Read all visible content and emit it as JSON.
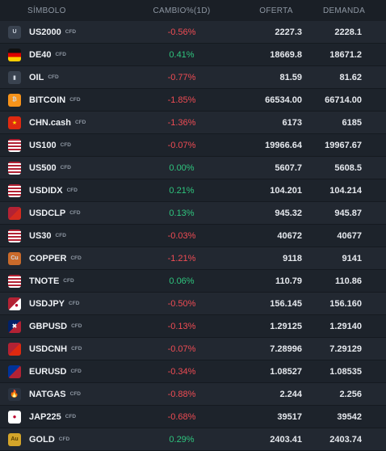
{
  "header": {
    "symbol": "SÍMBOLO",
    "change": "CAMBIO%(1D)",
    "bid": "OFERTA",
    "ask": "DEMANDA"
  },
  "colors": {
    "negative": "#ef4c54",
    "positive": "#2fc57e"
  },
  "rows": [
    {
      "symbol": "US2000",
      "tag": "CFD",
      "change": "-0.56%",
      "dir": "neg",
      "bid": "2227.3",
      "ask": "2228.1",
      "icon": "us2000-icon"
    },
    {
      "symbol": "DE40",
      "tag": "CFD",
      "change": "0.41%",
      "dir": "pos",
      "bid": "18669.8",
      "ask": "18671.2",
      "icon": "germany-flag-icon"
    },
    {
      "symbol": "OIL",
      "tag": "CFD",
      "change": "-0.77%",
      "dir": "neg",
      "bid": "81.59",
      "ask": "81.62",
      "icon": "oil-barrel-icon"
    },
    {
      "symbol": "BITCOIN",
      "tag": "CFD",
      "change": "-1.85%",
      "dir": "neg",
      "bid": "66534.00",
      "ask": "66714.00",
      "icon": "bitcoin-icon"
    },
    {
      "symbol": "CHN.cash",
      "tag": "CFD",
      "change": "-1.36%",
      "dir": "neg",
      "bid": "6173",
      "ask": "6185",
      "icon": "china-flag-icon"
    },
    {
      "symbol": "US100",
      "tag": "CFD",
      "change": "-0.07%",
      "dir": "neg",
      "bid": "19966.64",
      "ask": "19967.67",
      "icon": "us-flag-icon"
    },
    {
      "symbol": "US500",
      "tag": "CFD",
      "change": "0.00%",
      "dir": "pos",
      "bid": "5607.7",
      "ask": "5608.5",
      "icon": "us-flag-icon"
    },
    {
      "symbol": "USDIDX",
      "tag": "CFD",
      "change": "0.21%",
      "dir": "pos",
      "bid": "104.201",
      "ask": "104.214",
      "icon": "us-flag-icon"
    },
    {
      "symbol": "USDCLP",
      "tag": "CFD",
      "change": "0.13%",
      "dir": "pos",
      "bid": "945.32",
      "ask": "945.87",
      "icon": "us-chile-flag-icon"
    },
    {
      "symbol": "US30",
      "tag": "CFD",
      "change": "-0.03%",
      "dir": "neg",
      "bid": "40672",
      "ask": "40677",
      "icon": "us-flag-icon"
    },
    {
      "symbol": "COPPER",
      "tag": "CFD",
      "change": "-1.21%",
      "dir": "neg",
      "bid": "9118",
      "ask": "9141",
      "icon": "copper-icon"
    },
    {
      "symbol": "TNOTE",
      "tag": "CFD",
      "change": "0.06%",
      "dir": "pos",
      "bid": "110.79",
      "ask": "110.86",
      "icon": "us-flag-icon"
    },
    {
      "symbol": "USDJPY",
      "tag": "CFD",
      "change": "-0.50%",
      "dir": "neg",
      "bid": "156.145",
      "ask": "156.160",
      "icon": "us-japan-flag-icon"
    },
    {
      "symbol": "GBPUSD",
      "tag": "CFD",
      "change": "-0.13%",
      "dir": "neg",
      "bid": "1.29125",
      "ask": "1.29140",
      "icon": "uk-us-flag-icon"
    },
    {
      "symbol": "USDCNH",
      "tag": "CFD",
      "change": "-0.07%",
      "dir": "neg",
      "bid": "7.28996",
      "ask": "7.29129",
      "icon": "us-china-flag-icon"
    },
    {
      "symbol": "EURUSD",
      "tag": "CFD",
      "change": "-0.34%",
      "dir": "neg",
      "bid": "1.08527",
      "ask": "1.08535",
      "icon": "eu-us-flag-icon"
    },
    {
      "symbol": "NATGAS",
      "tag": "CFD",
      "change": "-0.88%",
      "dir": "neg",
      "bid": "2.244",
      "ask": "2.256",
      "icon": "gas-flame-icon"
    },
    {
      "symbol": "JAP225",
      "tag": "CFD",
      "change": "-0.68%",
      "dir": "neg",
      "bid": "39517",
      "ask": "39542",
      "icon": "japan-flag-icon"
    },
    {
      "symbol": "GOLD",
      "tag": "CFD",
      "change": "0.29%",
      "dir": "pos",
      "bid": "2403.41",
      "ask": "2403.74",
      "icon": "gold-icon"
    }
  ]
}
